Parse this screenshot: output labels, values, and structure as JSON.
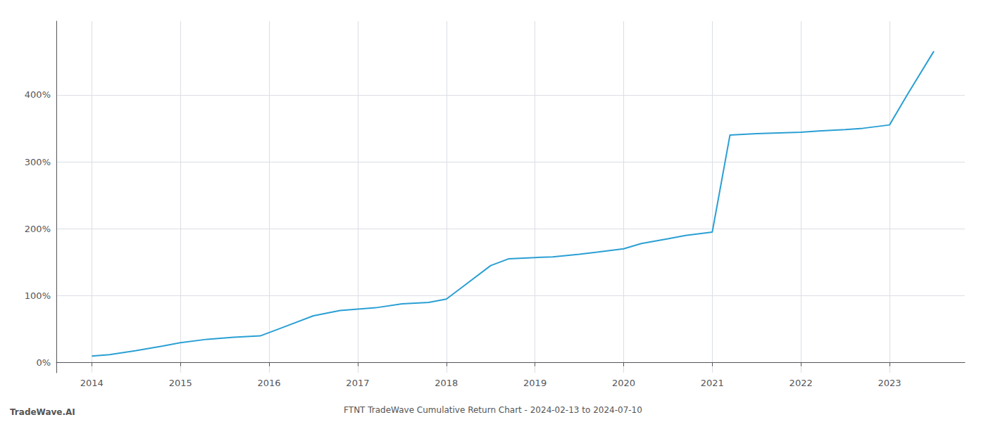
{
  "chart_data": {
    "type": "line",
    "title": "FTNT TradeWave Cumulative Return Chart - 2024-02-13 to 2024-07-10",
    "annotations": [
      "TradeWave.AI"
    ],
    "color": "#2a9fd4",
    "x": [
      2014.0,
      2014.2,
      2014.5,
      2014.8,
      2015.0,
      2015.3,
      2015.6,
      2015.9,
      2016.0,
      2016.2,
      2016.5,
      2016.8,
      2017.0,
      2017.2,
      2017.5,
      2017.8,
      2018.0,
      2018.2,
      2018.5,
      2018.7,
      2019.0,
      2019.2,
      2019.5,
      2019.7,
      2020.0,
      2020.2,
      2020.5,
      2020.7,
      2021.0,
      2021.2,
      2021.5,
      2022.0,
      2022.2,
      2022.5,
      2022.7,
      2023.0,
      2023.2,
      2023.5
    ],
    "values": [
      10,
      12,
      18,
      25,
      30,
      35,
      38,
      40,
      45,
      55,
      70,
      78,
      80,
      82,
      88,
      90,
      95,
      115,
      145,
      155,
      157,
      158,
      162,
      165,
      170,
      178,
      185,
      190,
      195,
      340,
      342,
      344,
      346,
      348,
      350,
      355,
      400,
      465
    ],
    "xlim": [
      2013.6,
      2023.85
    ],
    "ylim": [
      -15,
      510
    ],
    "xticks": [
      2014,
      2015,
      2016,
      2017,
      2018,
      2019,
      2020,
      2021,
      2022,
      2023
    ],
    "yticks": [
      {
        "value": 0,
        "label": "0%"
      },
      {
        "value": 100,
        "label": "100%"
      },
      {
        "value": 200,
        "label": "200%"
      },
      {
        "value": 300,
        "label": "300%"
      },
      {
        "value": 400,
        "label": "400%"
      }
    ],
    "grid": true
  }
}
